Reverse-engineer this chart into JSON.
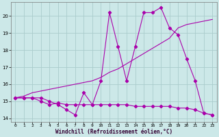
{
  "xlabel": "Windchill (Refroidissement éolien,°C)",
  "xlim": [
    -0.5,
    23.5
  ],
  "ylim": [
    13.8,
    20.8
  ],
  "yticks": [
    14,
    15,
    16,
    17,
    18,
    19,
    20
  ],
  "xticks": [
    0,
    1,
    2,
    3,
    4,
    5,
    6,
    7,
    8,
    9,
    10,
    11,
    12,
    13,
    14,
    15,
    16,
    17,
    18,
    19,
    20,
    21,
    22,
    23
  ],
  "bg_color": "#cce8e8",
  "grid_color": "#aacccc",
  "line_color": "#aa00aa",
  "series1_x": [
    0,
    1,
    2,
    3,
    4,
    5,
    6,
    7,
    8,
    9,
    10,
    11,
    12,
    13,
    14,
    15,
    16,
    17,
    18,
    19,
    20,
    21,
    22,
    23
  ],
  "series1_y": [
    15.2,
    15.2,
    15.2,
    15.2,
    15.0,
    14.8,
    14.5,
    14.2,
    15.5,
    14.8,
    16.2,
    20.2,
    18.2,
    16.2,
    18.2,
    20.2,
    20.2,
    20.5,
    19.3,
    18.9,
    17.5,
    16.2,
    14.3,
    14.2
  ],
  "series2_x": [
    0,
    1,
    2,
    3,
    4,
    5,
    6,
    7,
    8,
    9,
    10,
    11,
    12,
    13,
    14,
    15,
    16,
    17,
    18,
    19,
    20,
    21,
    22,
    23
  ],
  "series2_y": [
    15.2,
    15.2,
    15.2,
    15.0,
    14.8,
    14.9,
    14.8,
    14.8,
    14.8,
    14.8,
    14.8,
    14.8,
    14.8,
    14.8,
    14.7,
    14.7,
    14.7,
    14.7,
    14.7,
    14.6,
    14.6,
    14.5,
    14.3,
    14.2
  ],
  "series3_x": [
    0,
    1,
    2,
    3,
    4,
    5,
    6,
    7,
    8,
    9,
    10,
    11,
    12,
    13,
    14,
    15,
    16,
    17,
    18,
    19,
    20,
    21,
    22,
    23
  ],
  "series3_y": [
    15.2,
    15.3,
    15.5,
    15.6,
    15.7,
    15.8,
    15.9,
    16.0,
    16.1,
    16.2,
    16.4,
    16.7,
    16.9,
    17.2,
    17.5,
    17.8,
    18.1,
    18.4,
    18.7,
    19.3,
    19.5,
    19.6,
    19.7,
    19.8
  ]
}
